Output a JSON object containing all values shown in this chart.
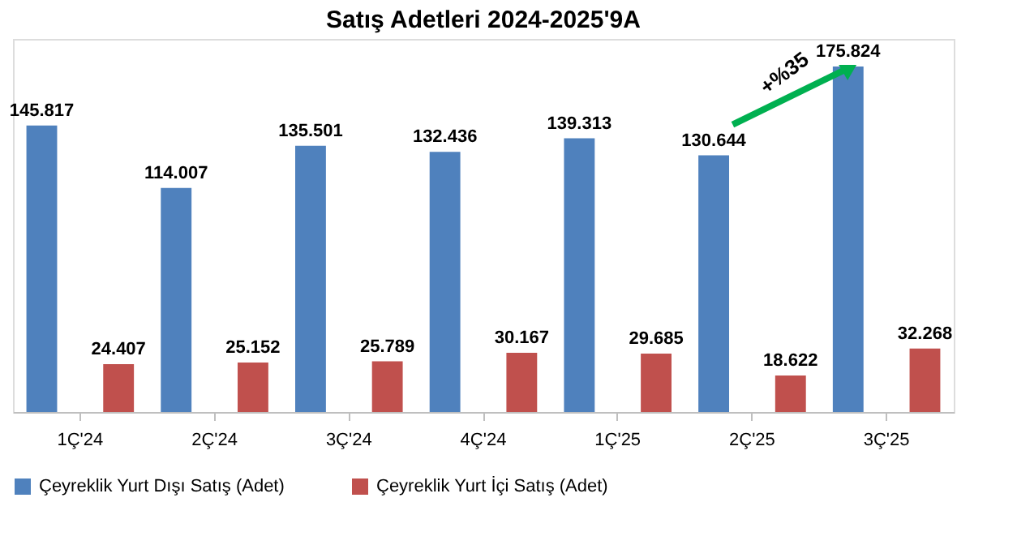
{
  "chart_data": {
    "type": "bar",
    "title": "Satış Adetleri 2024-2025'9A",
    "categories": [
      "1Ç'24",
      "2Ç'24",
      "3Ç'24",
      "4Ç'24",
      "1Ç'25",
      "2Ç'25",
      "3Ç'25"
    ],
    "series": [
      {
        "name": "Çeyreklik Yurt Dışı Satış (Adet)",
        "color": "#4f81bd",
        "values": [
          145817,
          114007,
          135501,
          132436,
          139313,
          130644,
          175824
        ],
        "value_labels": [
          "145.817",
          "114.007",
          "135.501",
          "132.436",
          "139.313",
          "130.644",
          "175.824"
        ]
      },
      {
        "name": "Çeyreklik Yurt İçi Satış (Adet)",
        "color": "#c0504d",
        "values": [
          24407,
          25152,
          25789,
          30167,
          29685,
          18622,
          32268
        ],
        "value_labels": [
          "24.407",
          "25.152",
          "25.789",
          "30.167",
          "29.685",
          "18.622",
          "32.268"
        ]
      }
    ],
    "annotations": [
      "+%35"
    ],
    "legend": "bottom",
    "grid": false
  }
}
